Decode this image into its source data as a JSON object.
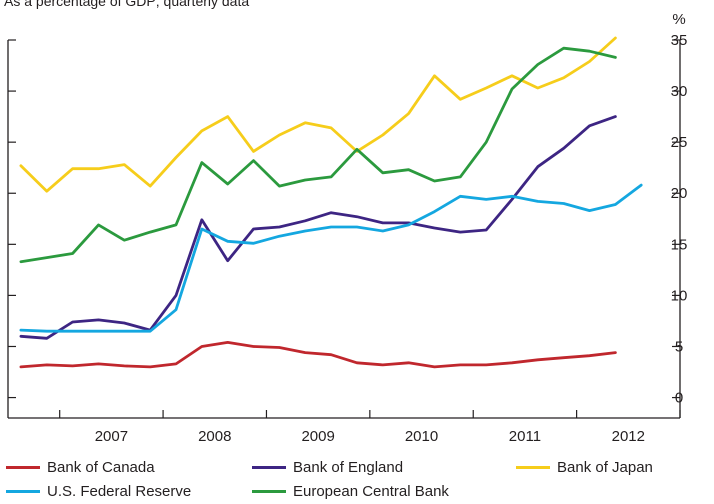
{
  "subtitle": "As a percentage of GDP; quarterly data",
  "chart_data": {
    "type": "line",
    "unit_label": "%",
    "x_start": 2006.625,
    "x_step": 0.25,
    "xlim": [
      2006.5,
      2013.0
    ],
    "x_tick_labels": [
      "2007",
      "2008",
      "2009",
      "2010",
      "2011",
      "2012"
    ],
    "ylim": [
      -2,
      35
    ],
    "y_ticks": [
      0,
      5,
      10,
      15,
      20,
      25,
      30,
      35
    ],
    "grid": false,
    "legend_position": "bottom",
    "series": [
      {
        "name": "Bank of Canada",
        "color": "#c0272d",
        "values": [
          3.0,
          3.2,
          3.1,
          3.3,
          3.1,
          3.0,
          3.3,
          5.0,
          5.4,
          5.0,
          4.9,
          4.4,
          4.2,
          3.4,
          3.2,
          3.4,
          3.0,
          3.2,
          3.2,
          3.4,
          3.7,
          3.9,
          4.1,
          4.4
        ]
      },
      {
        "name": "Bank of England",
        "color": "#3d2583",
        "values": [
          6.0,
          5.8,
          7.4,
          7.6,
          7.3,
          6.6,
          10.0,
          17.4,
          13.4,
          16.5,
          16.7,
          17.3,
          18.1,
          17.7,
          17.1,
          17.1,
          16.6,
          16.2,
          16.4,
          19.4,
          22.6,
          24.4,
          26.6,
          27.5
        ]
      },
      {
        "name": "Bank of Japan",
        "color": "#f6cd1b",
        "values": [
          22.7,
          20.2,
          22.4,
          22.4,
          22.8,
          20.7,
          23.5,
          26.1,
          27.5,
          24.1,
          25.7,
          26.9,
          26.4,
          24.1,
          25.7,
          27.8,
          31.5,
          29.2,
          30.3,
          31.5,
          30.3,
          31.3,
          32.9,
          35.2
        ]
      },
      {
        "name": "U.S. Federal Reserve",
        "color": "#14a7e0",
        "values": [
          6.6,
          6.5,
          6.5,
          6.5,
          6.5,
          6.5,
          8.6,
          16.5,
          15.3,
          15.1,
          15.8,
          16.3,
          16.7,
          16.7,
          16.3,
          16.9,
          18.2,
          19.7,
          19.4,
          19.7,
          19.2,
          19.0,
          18.3,
          18.9,
          20.8
        ]
      },
      {
        "name": "European Central Bank",
        "color": "#2b9a3e",
        "values": [
          13.3,
          13.7,
          14.1,
          16.9,
          15.4,
          16.2,
          16.9,
          23.0,
          20.9,
          23.2,
          20.7,
          21.3,
          21.6,
          24.3,
          22.0,
          22.3,
          21.2,
          21.6,
          25.0,
          30.2,
          32.6,
          34.2,
          33.9,
          33.3
        ]
      }
    ]
  }
}
